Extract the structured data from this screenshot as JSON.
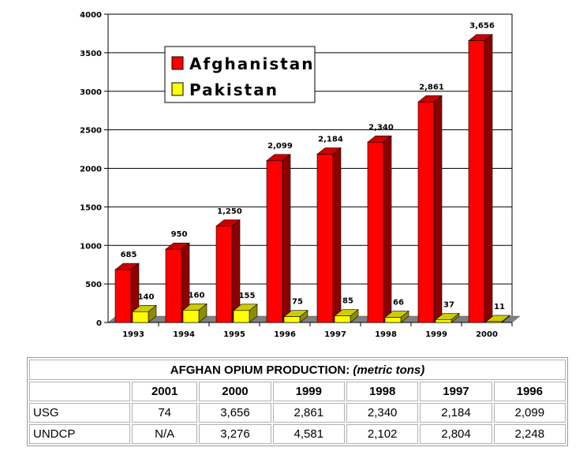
{
  "chart_data": {
    "type": "bar",
    "categories": [
      "1993",
      "1994",
      "1995",
      "1996",
      "1997",
      "1998",
      "1999",
      "2000"
    ],
    "series": [
      {
        "name": "Afghanistan",
        "color": "#ff0000",
        "values": [
          685,
          950,
          1250,
          2099,
          2184,
          2340,
          2861,
          3656
        ],
        "labels": [
          "685",
          "950",
          "1,250",
          "2,099",
          "2,184",
          "2,340",
          "2,861",
          "3,656"
        ]
      },
      {
        "name": "Pakistan",
        "color": "#ffff00",
        "values": [
          140,
          160,
          155,
          75,
          85,
          66,
          37,
          11
        ],
        "labels": [
          "140",
          "160",
          "155",
          "75",
          "85",
          "66",
          "37",
          "11"
        ]
      }
    ],
    "yticks": [
      "0",
      "500",
      "1000",
      "1500",
      "2000",
      "2500",
      "3000",
      "3500",
      "4000"
    ],
    "ylim": [
      0,
      4000
    ],
    "grid": true,
    "legend_position": "top-left",
    "three_d": true
  },
  "table": {
    "title": "AFGHAN OPIUM PRODUCTION:",
    "unit": "(metric tons)",
    "headers": [
      "",
      "2001",
      "2000",
      "1999",
      "1998",
      "1997",
      "1996"
    ],
    "rows": [
      {
        "label": "USG",
        "values": [
          "74",
          "3,656",
          "2,861",
          "2,340",
          "2,184",
          "2,099"
        ]
      },
      {
        "label": "UNDCP",
        "values": [
          "N/A",
          "3,276",
          "4,581",
          "2,102",
          "2,804",
          "2,248"
        ]
      }
    ]
  }
}
